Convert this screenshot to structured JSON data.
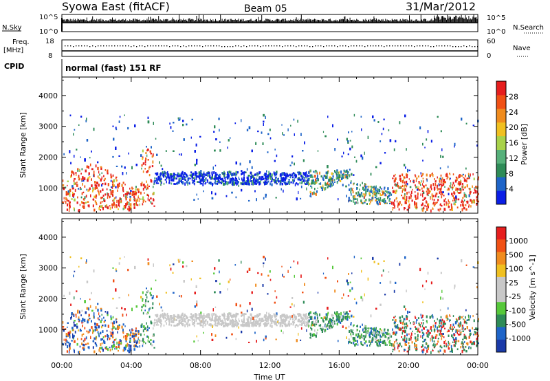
{
  "header": {
    "station": "Syowa East (fitACF)",
    "beam": "Beam 05",
    "date": "31/Mar/2012"
  },
  "top_panels": {
    "nsky_label": "N.Sky",
    "nsky_ticks": [
      "10^5",
      "10^0"
    ],
    "nsearch_label": "N.Search",
    "nsearch_ticks": [
      "10^5",
      "10^0"
    ],
    "freq_label_1": "Freq.",
    "freq_label_2": "[MHz]",
    "freq_ticks": [
      "18",
      "8"
    ],
    "nave_label": "Nave",
    "nave_ticks": [
      "60",
      "0"
    ],
    "cpid_label": "CPID",
    "cpid_value": "normal (fast) 151 RF"
  },
  "colors": {
    "power": [
      "#0a1ee6",
      "#1e64c8",
      "#2e8b57",
      "#56b07a",
      "#a8d24a",
      "#f0c020",
      "#f08c1e",
      "#f05014",
      "#e61e1e"
    ],
    "velocity": [
      "#e61e1e",
      "#f05014",
      "#f08c1e",
      "#f0c020",
      "#c8c8c8",
      "#c8c8c8",
      "#56c83a",
      "#2e8b57",
      "#1e64c8",
      "#1a3aa8"
    ]
  },
  "chart_data": [
    {
      "type": "heatmap",
      "name": "power",
      "xlabel": "",
      "ylabel": "Slant Range [km]",
      "x_ticks": [
        "00:00",
        "04:00",
        "08:00",
        "12:00",
        "16:00",
        "20:00",
        "00:00"
      ],
      "y_ticks": [
        "1000",
        "2000",
        "3000",
        "4000"
      ],
      "ylim": [
        180,
        4600
      ],
      "colorbar_label": "Power [dB]",
      "colorbar_ticks": [
        "4",
        "8",
        "12",
        "16",
        "20",
        "24",
        "28"
      ],
      "colorbar_range": [
        0,
        32
      ]
    },
    {
      "type": "heatmap",
      "name": "velocity",
      "xlabel": "Time UT",
      "ylabel": "Slant Range [km]",
      "x_ticks": [
        "00:00",
        "04:00",
        "08:00",
        "12:00",
        "16:00",
        "20:00",
        "00:00"
      ],
      "y_ticks": [
        "1000",
        "2000",
        "3000",
        "4000"
      ],
      "ylim": [
        180,
        4600
      ],
      "colorbar_label": "Velocity [m s^-1]",
      "colorbar_ticks": [
        "1000",
        "500",
        "100",
        "25",
        "-25",
        "-100",
        "-500",
        "-1000"
      ]
    }
  ]
}
